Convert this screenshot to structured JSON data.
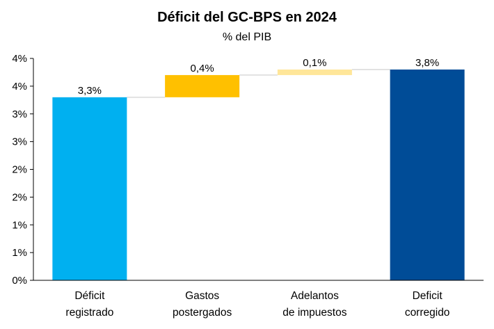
{
  "chart_data": {
    "type": "bar",
    "subtype": "waterfall",
    "title": "Déficit del GC-BPS en 2024",
    "subtitle": "% del PIB",
    "categories": [
      [
        "Déficit",
        "registrado"
      ],
      [
        "Gastos",
        "postergados"
      ],
      [
        "Adelantos",
        "de impuestos"
      ],
      [
        "Deficit",
        "corregido"
      ]
    ],
    "steps": [
      {
        "start": 0,
        "end": 3.3,
        "label": "3,3%",
        "color": "#00b0f0"
      },
      {
        "start": 3.3,
        "end": 3.7,
        "label": "0,4%",
        "color": "#ffc000"
      },
      {
        "start": 3.7,
        "end": 3.8,
        "label": "0,1%",
        "color": "#ffe699"
      },
      {
        "start": 0,
        "end": 3.8,
        "label": "3,8%",
        "color": "#004c97"
      }
    ],
    "values": [
      3.3,
      0.4,
      0.1,
      3.8
    ],
    "ylim": [
      0,
      4.0
    ],
    "yticks": [
      {
        "value": 0,
        "label": "0%"
      },
      {
        "value": 0.5,
        "label": "1%"
      },
      {
        "value": 1.0,
        "label": "1%"
      },
      {
        "value": 1.5,
        "label": "2%"
      },
      {
        "value": 2.0,
        "label": "2%"
      },
      {
        "value": 2.5,
        "label": "3%"
      },
      {
        "value": 3.0,
        "label": "3%"
      },
      {
        "value": 3.5,
        "label": "4%"
      },
      {
        "value": 4.0,
        "label": "4%"
      }
    ],
    "grid": false,
    "connectors": true,
    "connector_color": "#d9d9d9",
    "axis_color": "#000000"
  }
}
